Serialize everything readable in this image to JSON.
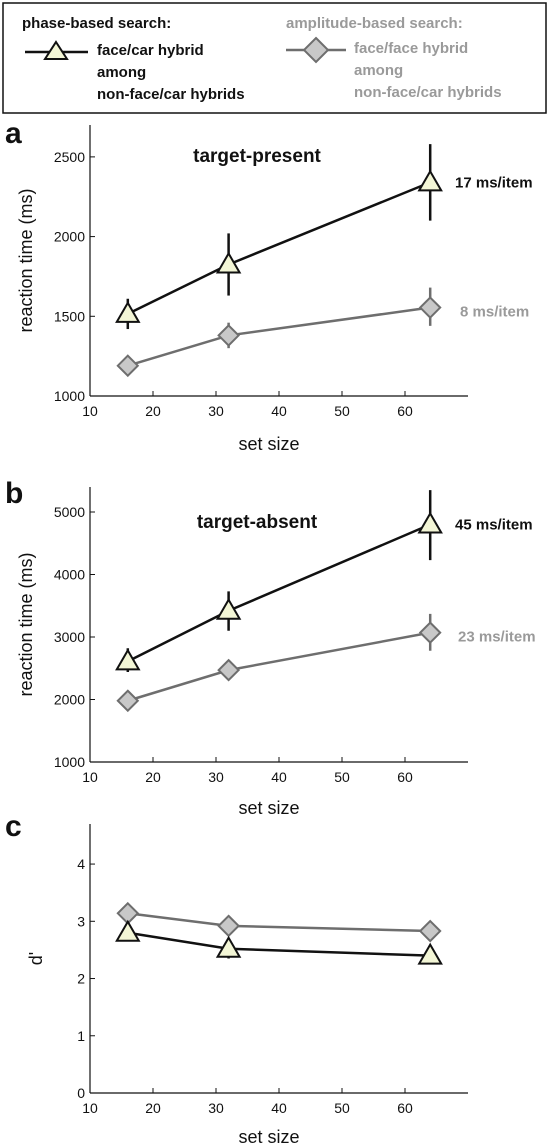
{
  "legend": {
    "phase": {
      "title": "phase-based search:",
      "lines": [
        "face/car hybrid",
        "among",
        "non-face/car hybrids"
      ]
    },
    "amplitude": {
      "title": "amplitude-based search:",
      "lines": [
        "face/face hybrid",
        "among",
        "non-face/car hybrids"
      ]
    }
  },
  "colors": {
    "phase_line": "#111111",
    "phase_marker_fill": "#f3f6d6",
    "amplitude_line": "#6e6e6e",
    "amplitude_marker_fill": "#c8c8c8",
    "amplitude_text": "#9a9a9a"
  },
  "chart_data": [
    {
      "type": "line",
      "panel_label": "a",
      "annotation": "target-present",
      "xlabel": "set size",
      "ylabel": "reaction time (ms)",
      "xlim": [
        10,
        70
      ],
      "ylim": [
        1000,
        2700
      ],
      "x_ticks": [
        "10",
        "20",
        "30",
        "40",
        "50",
        "60"
      ],
      "y_ticks": [
        "1000",
        "1500",
        "2000",
        "2500"
      ],
      "x": [
        16,
        32,
        64
      ],
      "series": [
        {
          "key": "phase",
          "values": [
            1515,
            1825,
            2340
          ],
          "err_low": [
            1420,
            1630,
            2100
          ],
          "err_high": [
            1610,
            2020,
            2580
          ],
          "slope_label": "17 ms/item"
        },
        {
          "key": "amplitude",
          "values": [
            1190,
            1380,
            1555
          ],
          "err_low": [
            1150,
            1300,
            1440
          ],
          "err_high": [
            1230,
            1460,
            1680
          ],
          "slope_label": "8  ms/item"
        }
      ]
    },
    {
      "type": "line",
      "panel_label": "b",
      "annotation": "target-absent",
      "xlabel": "set size",
      "ylabel": "reaction time (ms)",
      "xlim": [
        10,
        70
      ],
      "ylim": [
        1000,
        5400
      ],
      "x_ticks": [
        "10",
        "20",
        "30",
        "40",
        "50",
        "60"
      ],
      "y_ticks": [
        "1000",
        "2000",
        "3000",
        "4000",
        "5000"
      ],
      "x": [
        16,
        32,
        64
      ],
      "series": [
        {
          "key": "phase",
          "values": [
            2610,
            3420,
            4800
          ],
          "err_low": [
            2440,
            3100,
            4230
          ],
          "err_high": [
            2820,
            3730,
            5350
          ],
          "slope_label": "45 ms/item"
        },
        {
          "key": "amplitude",
          "values": [
            1980,
            2470,
            3070
          ],
          "err_low": [
            1930,
            2400,
            2780
          ],
          "err_high": [
            2030,
            2540,
            3370
          ],
          "slope_label": "23  ms/item"
        }
      ]
    },
    {
      "type": "line",
      "panel_label": "c",
      "xlabel": "set size",
      "ylabel": "d'",
      "xlim": [
        10,
        70
      ],
      "ylim": [
        0,
        4.7
      ],
      "x_ticks": [
        "10",
        "20",
        "30",
        "40",
        "50",
        "60"
      ],
      "y_ticks": [
        "0",
        "1",
        "2",
        "3",
        "4"
      ],
      "x": [
        16,
        32,
        64
      ],
      "series": [
        {
          "key": "phase",
          "values": [
            2.8,
            2.52,
            2.4
          ],
          "err_low": [
            2.65,
            2.35,
            2.28
          ],
          "err_high": [
            2.9,
            2.62,
            2.52
          ]
        },
        {
          "key": "amplitude",
          "values": [
            3.14,
            2.92,
            2.83
          ],
          "err_low": [
            3.05,
            2.84,
            2.76
          ],
          "err_high": [
            3.22,
            3.0,
            2.9
          ]
        }
      ]
    }
  ]
}
